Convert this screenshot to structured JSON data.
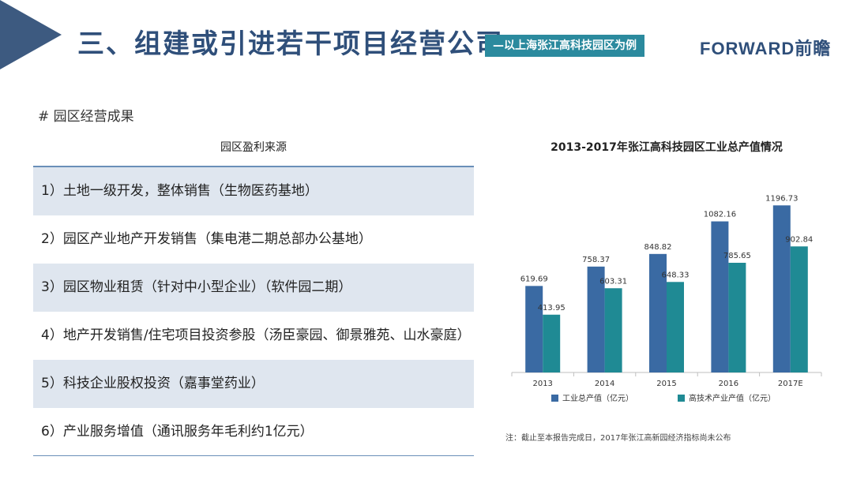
{
  "header": {
    "title": "三、组建或引进若干项目经营公司",
    "subtitle": "—以上海张江高科技园区为例",
    "logo": "FORWARD前瞻"
  },
  "section": {
    "heading": "# 园区经营成果"
  },
  "profit_list": {
    "title": "园区盈利来源",
    "items": [
      "1）土地一级开发，整体销售（生物医药基地）",
      "2）园区产业地产开发销售（集电港二期总部办公基地）",
      "3）园区物业租赁（针对中小型企业）（软件园二期）",
      "4）地产开发销售/住宅项目投资参股（汤臣豪园、御景雅苑、山水豪庭）",
      "5）科技企业股权投资（嘉事堂药业）",
      "6）产业服务增值（通讯服务年毛利约1亿元）"
    ]
  },
  "chart_data": {
    "type": "bar",
    "title": "2013-2017年张江高科技园区工业总产值情况",
    "categories": [
      "2013",
      "2014",
      "2015",
      "2016",
      "2017E"
    ],
    "series": [
      {
        "name": "工业总产值（亿元）",
        "values": [
          619.69,
          758.37,
          848.82,
          1082.16,
          1196.73
        ],
        "labels": [
          "619.69",
          "758.37",
          "848.82",
          "1082.16",
          "1196.73"
        ],
        "color": "#3a6aa3"
      },
      {
        "name": "高技术产业产值（亿元）",
        "values": [
          413.95,
          603.31,
          648.33,
          785.65,
          902.84
        ],
        "labels": [
          "413.95",
          "603.31",
          "648.33",
          "785.65",
          "902.84"
        ],
        "color": "#1f8a94"
      }
    ],
    "ylim": [
      0,
      1300
    ],
    "grid": false,
    "legend": "bottom",
    "note": "注：截止至本报告完成日，2017年张江高新园经济指标尚未公布"
  }
}
